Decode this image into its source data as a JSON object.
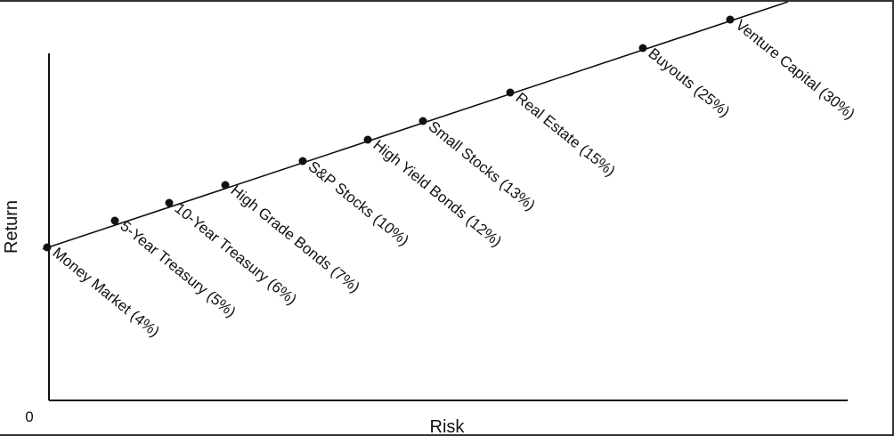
{
  "axes": {
    "origin_label": "0",
    "y_label": "Return",
    "x_label": "Risk"
  },
  "points": [
    {
      "label": "Money Market (4%)"
    },
    {
      "label": "5-Year Treasury (5%)"
    },
    {
      "label": "10-Year Treasury (6%)"
    },
    {
      "label": "High Grade Bonds (7%)"
    },
    {
      "label": "S&P Stocks (10%)"
    },
    {
      "label": "High Yield Bonds (12%)"
    },
    {
      "label": "Small Stocks (13%)"
    },
    {
      "label": "Real Estate (15%)"
    },
    {
      "label": "Buyouts (25%)"
    },
    {
      "label": "Venture Capital (30%)"
    }
  ]
}
